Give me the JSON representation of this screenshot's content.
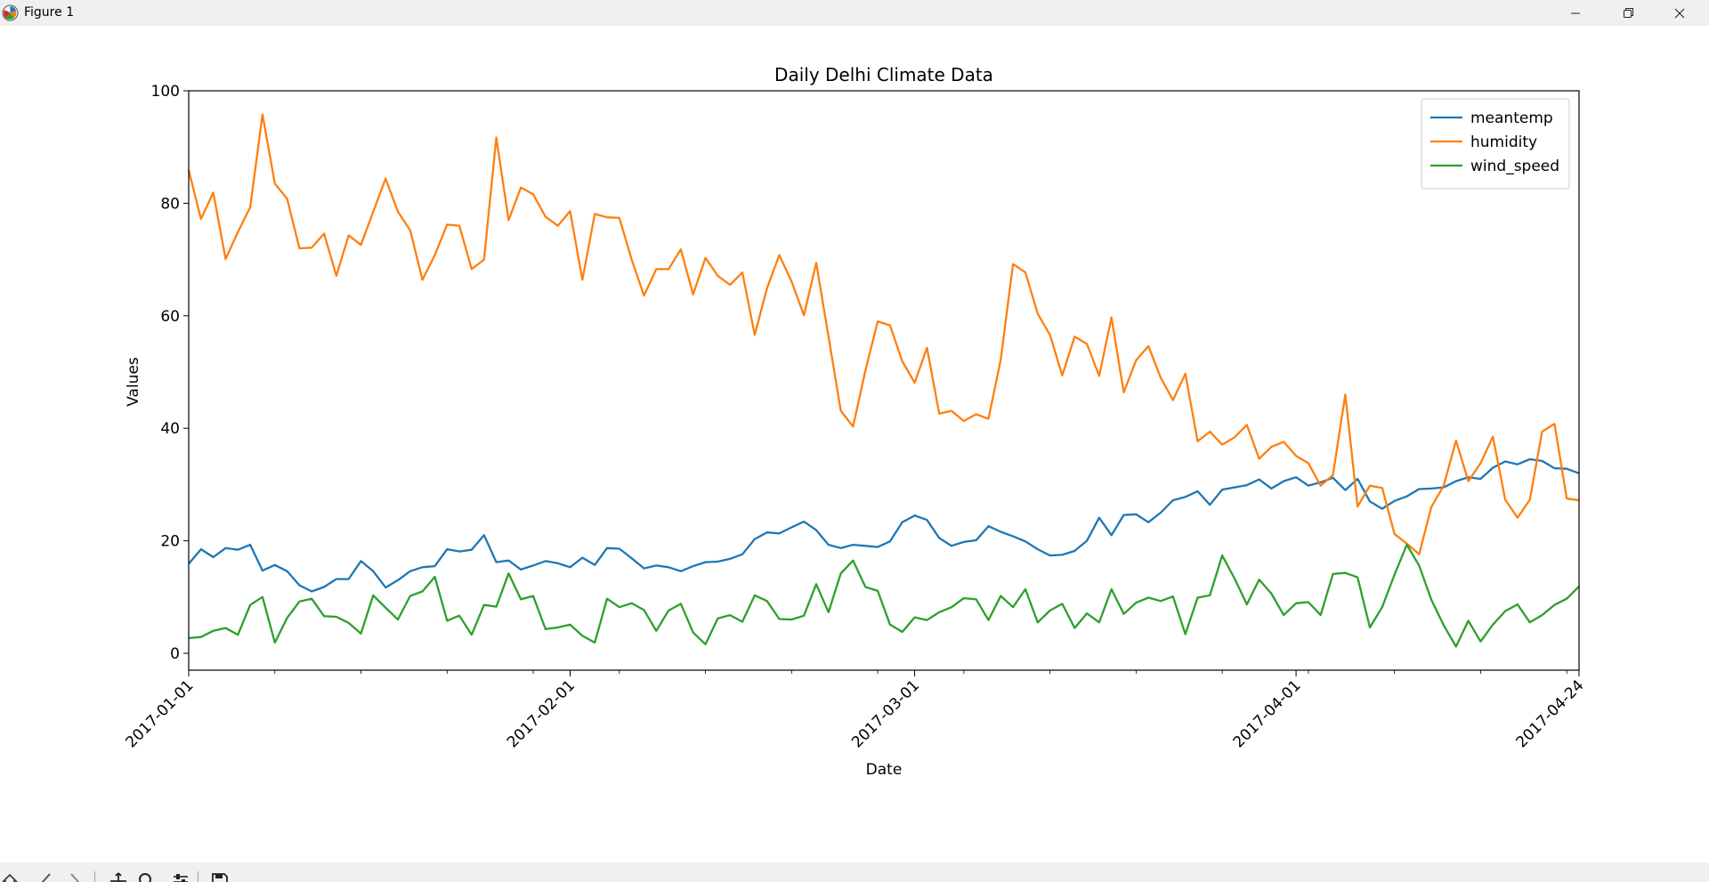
{
  "window": {
    "title": "Figure 1",
    "controls": {
      "minimize_icon": "minimize-icon",
      "maximize_icon": "restore-icon",
      "close_icon": "close-icon"
    }
  },
  "toolbar": {
    "buttons": [
      "home-icon",
      "back-icon",
      "forward-icon",
      "pan-icon",
      "zoom-icon",
      "configure-subplots-icon",
      "save-icon"
    ]
  },
  "chart_data": {
    "type": "line",
    "title": "Daily Delhi Climate Data",
    "xlabel": "Date",
    "ylabel": "Values",
    "x_start": "2017-01-01",
    "x_end": "2017-04-24",
    "xlim": [
      "2017-01-01",
      "2017-04-24"
    ],
    "ylim": [
      -3,
      100
    ],
    "yticks": [
      0,
      20,
      40,
      60,
      80,
      100
    ],
    "xticks": [
      "2017-01-01",
      "2017-02-01",
      "2017-03-01",
      "2017-04-01",
      "2017-04-24"
    ],
    "grid": false,
    "legend_position": "top-right",
    "colors": {
      "meantemp": "#1f77b4",
      "humidity": "#ff7f0e",
      "wind_speed": "#2ca02c"
    },
    "series": [
      {
        "name": "meantemp",
        "color": "#1f77b4",
        "values": [
          15.9,
          18.5,
          17.1,
          18.7,
          18.4,
          19.3,
          14.7,
          15.7,
          14.6,
          12.1,
          11.0,
          11.8,
          13.2,
          13.2,
          16.4,
          14.6,
          11.7,
          13.0,
          14.6,
          15.3,
          15.5,
          18.5,
          18.1,
          18.4,
          21.0,
          16.2,
          16.5,
          14.9,
          15.6,
          16.4,
          16.0,
          15.3,
          17.0,
          15.7,
          18.7,
          18.6,
          16.9,
          15.1,
          15.6,
          15.3,
          14.6,
          15.5,
          16.2,
          16.3,
          16.8,
          17.6,
          20.3,
          21.5,
          21.3,
          22.4,
          23.4,
          21.9,
          19.3,
          18.7,
          19.3,
          19.1,
          18.9,
          19.9,
          23.3,
          24.5,
          23.7,
          20.5,
          19.1,
          19.8,
          20.1,
          22.6,
          21.6,
          20.8,
          19.9,
          18.5,
          17.4,
          17.5,
          18.2,
          20.0,
          24.1,
          21.0,
          24.6,
          24.7,
          23.3,
          25.0,
          27.2,
          27.8,
          28.8,
          26.4,
          29.1,
          29.5,
          29.9,
          30.9,
          29.3,
          30.6,
          31.3,
          29.8,
          30.4,
          31.2,
          29.0,
          31.0,
          27.0,
          25.7,
          27.1,
          27.9,
          29.2,
          29.3,
          29.5,
          30.6,
          31.3,
          31.0,
          33.0,
          34.1,
          33.6,
          34.5,
          34.2,
          32.9,
          32.8,
          32.0
        ]
      },
      {
        "name": "humidity",
        "color": "#ff7f0e",
        "values": [
          85.9,
          77.2,
          81.9,
          70.1,
          74.9,
          79.3,
          95.8,
          83.5,
          80.8,
          72.0,
          72.1,
          74.6,
          67.1,
          74.3,
          72.6,
          78.5,
          84.4,
          78.5,
          75.2,
          66.4,
          70.8,
          76.2,
          76.0,
          68.3,
          70.0,
          91.7,
          77.0,
          82.8,
          81.6,
          77.6,
          76.0,
          78.6,
          66.4,
          78.1,
          77.5,
          77.4,
          70.0,
          63.6,
          68.3,
          68.3,
          71.8,
          63.8,
          70.3,
          67.1,
          65.5,
          67.7,
          56.6,
          64.9,
          70.8,
          66.1,
          60.1,
          69.4,
          56.3,
          43.1,
          40.3,
          50.3,
          59.0,
          58.3,
          51.9,
          48.1,
          54.3,
          42.6,
          43.1,
          41.3,
          42.5,
          41.7,
          52.2,
          69.2,
          67.7,
          60.4,
          56.6,
          49.4,
          56.3,
          55.0,
          49.3,
          59.7,
          46.4,
          52.1,
          54.6,
          49.0,
          45.0,
          49.7,
          37.7,
          39.4,
          37.1,
          38.4,
          40.6,
          34.6,
          36.7,
          37.6,
          35.1,
          33.8,
          29.8,
          31.7,
          46.0,
          26.1,
          29.8,
          29.4,
          21.2,
          19.5,
          17.6,
          26.0,
          29.8,
          37.8,
          30.6,
          33.8,
          38.5,
          27.3,
          24.1,
          27.3,
          39.4,
          40.8,
          27.5,
          27.2
        ]
      },
      {
        "name": "wind_speed",
        "color": "#2ca02c",
        "values": [
          2.7,
          2.9,
          4.0,
          4.5,
          3.3,
          8.6,
          10.0,
          1.9,
          6.3,
          9.2,
          9.7,
          6.6,
          6.5,
          5.4,
          3.5,
          10.3,
          8.1,
          6.0,
          10.2,
          11.0,
          13.6,
          5.8,
          6.7,
          3.3,
          8.6,
          8.3,
          14.2,
          9.6,
          10.2,
          4.3,
          4.6,
          5.1,
          3.1,
          1.9,
          9.7,
          8.2,
          8.9,
          7.7,
          4.0,
          7.6,
          8.8,
          3.7,
          1.6,
          6.2,
          6.8,
          5.6,
          10.3,
          9.3,
          6.1,
          6.0,
          6.7,
          12.3,
          7.3,
          14.2,
          16.5,
          11.8,
          11.1,
          5.1,
          3.8,
          6.4,
          5.9,
          7.3,
          8.2,
          9.8,
          9.6,
          5.9,
          10.2,
          8.2,
          11.4,
          5.5,
          7.6,
          8.8,
          4.5,
          7.1,
          5.5,
          11.4,
          7.0,
          9.0,
          9.9,
          9.3,
          10.1,
          3.4,
          9.9,
          10.3,
          17.4,
          13.3,
          8.7,
          13.1,
          10.6,
          6.8,
          8.9,
          9.1,
          6.8,
          14.1,
          14.3,
          13.5,
          4.6,
          8.2,
          14.0,
          19.3,
          15.6,
          9.5,
          5.0,
          1.2,
          5.8,
          2.1,
          5.1,
          7.5,
          8.7,
          5.5,
          6.8,
          8.6,
          9.7,
          11.9
        ]
      }
    ]
  }
}
